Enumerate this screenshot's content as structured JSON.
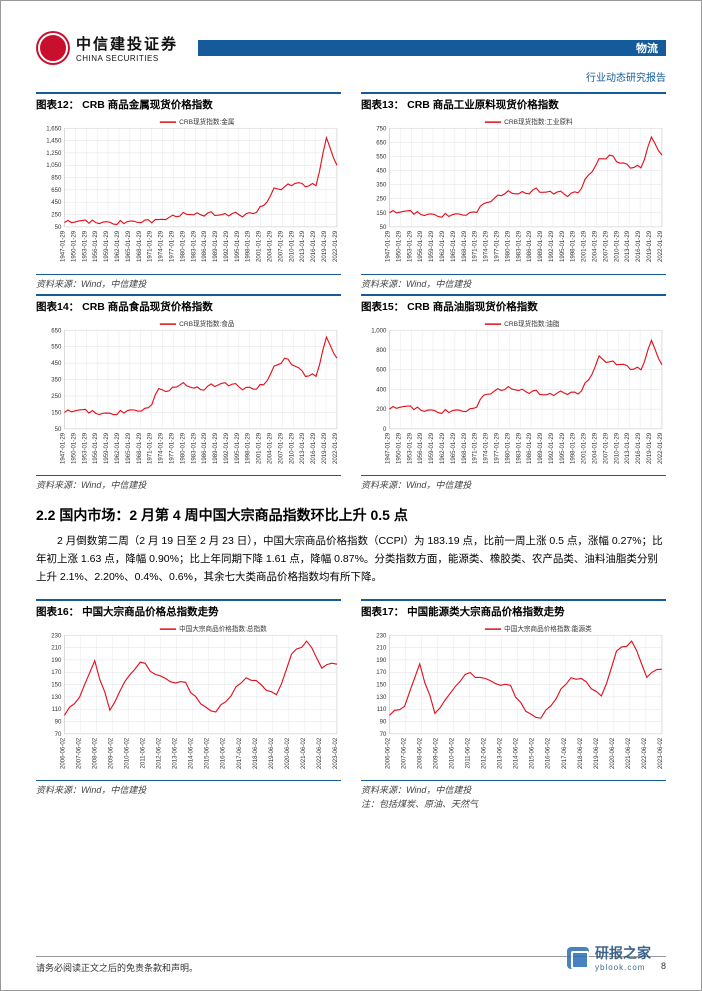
{
  "header": {
    "company_cn": "中信建投证券",
    "company_en": "CHINA SECURITIES",
    "category": "物流",
    "subtitle": "行业动态研究报告"
  },
  "section": {
    "heading": "2.2 国内市场：2 月第 4 周中国大宗商品指数环比上升 0.5 点",
    "paragraph": "2 月倒数第二周（2 月 19 日至 2 月 23 日），中国大宗商品价格指数（CCPI）为 183.19 点，比前一周上涨 0.5 点，涨幅 0.27%；比年初上涨 1.63 点，降幅 0.90%；比上年同期下降 1.61 点，降幅 0.87%。分类指数方面，能源类、橡胶类、农产品类、油料油脂类分别上升 2.1%、2.20%、0.4%、0.6%，其余七大类商品价格指数均有所下降。"
  },
  "common": {
    "source": "资料来源：Wind，中信建投",
    "axis_dates_long": [
      "1947-01-29",
      "1950-01-29",
      "1953-01-29",
      "1956-01-29",
      "1959-01-29",
      "1962-01-29",
      "1965-01-29",
      "1968-01-29",
      "1971-01-29",
      "1974-01-29",
      "1977-01-29",
      "1980-01-29",
      "1983-01-29",
      "1986-01-29",
      "1989-01-29",
      "1992-01-29",
      "1995-01-29",
      "1998-01-29",
      "2001-01-29",
      "2004-01-29",
      "2007-01-29",
      "2010-01-29",
      "2013-01-29",
      "2016-01-29",
      "2019-01-29",
      "2022-01-29"
    ],
    "axis_dates_mid": [
      "2006-06-02",
      "2007-06-02",
      "2008-06-02",
      "2009-06-02",
      "2010-06-02",
      "2011-06-02",
      "2012-06-02",
      "2013-06-02",
      "2014-06-02",
      "2015-06-02",
      "2016-06-02",
      "2017-06-02",
      "2018-06-02",
      "2019-06-02",
      "2020-06-02",
      "2021-06-02",
      "2022-06-02",
      "2023-06-02"
    ],
    "line_color": "#e30e1a",
    "grid_color": "#d9d9d9",
    "axis_text_color": "#333333",
    "bg": "#ffffff"
  },
  "charts": [
    {
      "id": "c12",
      "title_prefix": "图表12：",
      "title": "CRB 商品金属现货价格指数",
      "legend": "CRB现货指数:金属",
      "ylim": [
        50,
        1650
      ],
      "ytick_step": 200,
      "yticks": [
        50,
        250,
        450,
        650,
        850,
        1050,
        1250,
        1450,
        1650
      ],
      "xaxis": "long",
      "values": [
        120,
        130,
        125,
        135,
        130,
        125,
        120,
        125,
        130,
        180,
        200,
        260,
        240,
        250,
        260,
        255,
        260,
        245,
        260,
        400,
        650,
        700,
        750,
        730,
        720,
        1500,
        1050
      ]
    },
    {
      "id": "c13",
      "title_prefix": "图表13：",
      "title": "CRB 商品工业原料现货价格指数",
      "legend": "CRB现货指数:工业原料",
      "ylim": [
        50,
        750
      ],
      "ytick_step": 100,
      "yticks": [
        50,
        150,
        250,
        350,
        450,
        550,
        650,
        750
      ],
      "xaxis": "long",
      "values": [
        150,
        155,
        150,
        145,
        140,
        135,
        130,
        135,
        140,
        220,
        250,
        300,
        280,
        290,
        310,
        300,
        295,
        280,
        290,
        420,
        520,
        560,
        500,
        480,
        470,
        690,
        560
      ]
    },
    {
      "id": "c14",
      "title_prefix": "图表14：",
      "title": "CRB 商品食品现货价格指数",
      "legend": "CRB现货指数:食品",
      "ylim": [
        50,
        650
      ],
      "ytick_step": 100,
      "yticks": [
        50,
        150,
        250,
        350,
        450,
        550,
        650
      ],
      "xaxis": "long",
      "values": [
        150,
        160,
        155,
        150,
        145,
        150,
        155,
        160,
        165,
        300,
        280,
        330,
        300,
        290,
        310,
        330,
        320,
        300,
        290,
        320,
        420,
        480,
        430,
        380,
        370,
        610,
        480
      ]
    },
    {
      "id": "c15",
      "title_prefix": "图表15：",
      "title": "CRB 商品油脂现货价格指数",
      "legend": "CRB现货指数:油脂",
      "ylim": [
        0,
        1000
      ],
      "ytick_step": 200,
      "yticks": [
        0,
        200,
        400,
        600,
        800,
        1000
      ],
      "xaxis": "long",
      "values": [
        200,
        220,
        210,
        200,
        190,
        180,
        175,
        180,
        185,
        350,
        380,
        420,
        390,
        380,
        370,
        350,
        360,
        370,
        350,
        500,
        720,
        680,
        650,
        620,
        600,
        900,
        650
      ]
    },
    {
      "id": "c16",
      "title_prefix": "图表16：",
      "title": "中国大宗商品价格总指数走势",
      "legend": "中国大宗商品价格指数:总指数",
      "ylim": [
        70,
        230
      ],
      "ytick_step": 20,
      "yticks": [
        70,
        90,
        110,
        130,
        150,
        170,
        190,
        210,
        230
      ],
      "xaxis": "mid",
      "values": [
        100,
        130,
        185,
        110,
        155,
        190,
        165,
        155,
        150,
        120,
        105,
        135,
        160,
        150,
        130,
        200,
        220,
        180,
        183
      ]
    },
    {
      "id": "c17",
      "title_prefix": "图表17：",
      "title": "中国能源类大宗商品价格指数走势",
      "legend": "中国大宗商品价格指数:能源类",
      "ylim": [
        70,
        230
      ],
      "ytick_step": 20,
      "yticks": [
        70,
        90,
        110,
        130,
        150,
        170,
        190,
        210,
        230
      ],
      "xaxis": "mid",
      "values": [
        100,
        115,
        180,
        105,
        135,
        170,
        160,
        152,
        145,
        108,
        95,
        130,
        160,
        155,
        128,
        205,
        220,
        165,
        175
      ],
      "note": "注：包括煤炭、原油、天然气"
    }
  ],
  "footer": {
    "disclaimer": "请务必阅读正文之后的免责条款和声明。",
    "page": "8"
  },
  "watermark": {
    "cn": "研报之家",
    "en": "yblook.com"
  }
}
